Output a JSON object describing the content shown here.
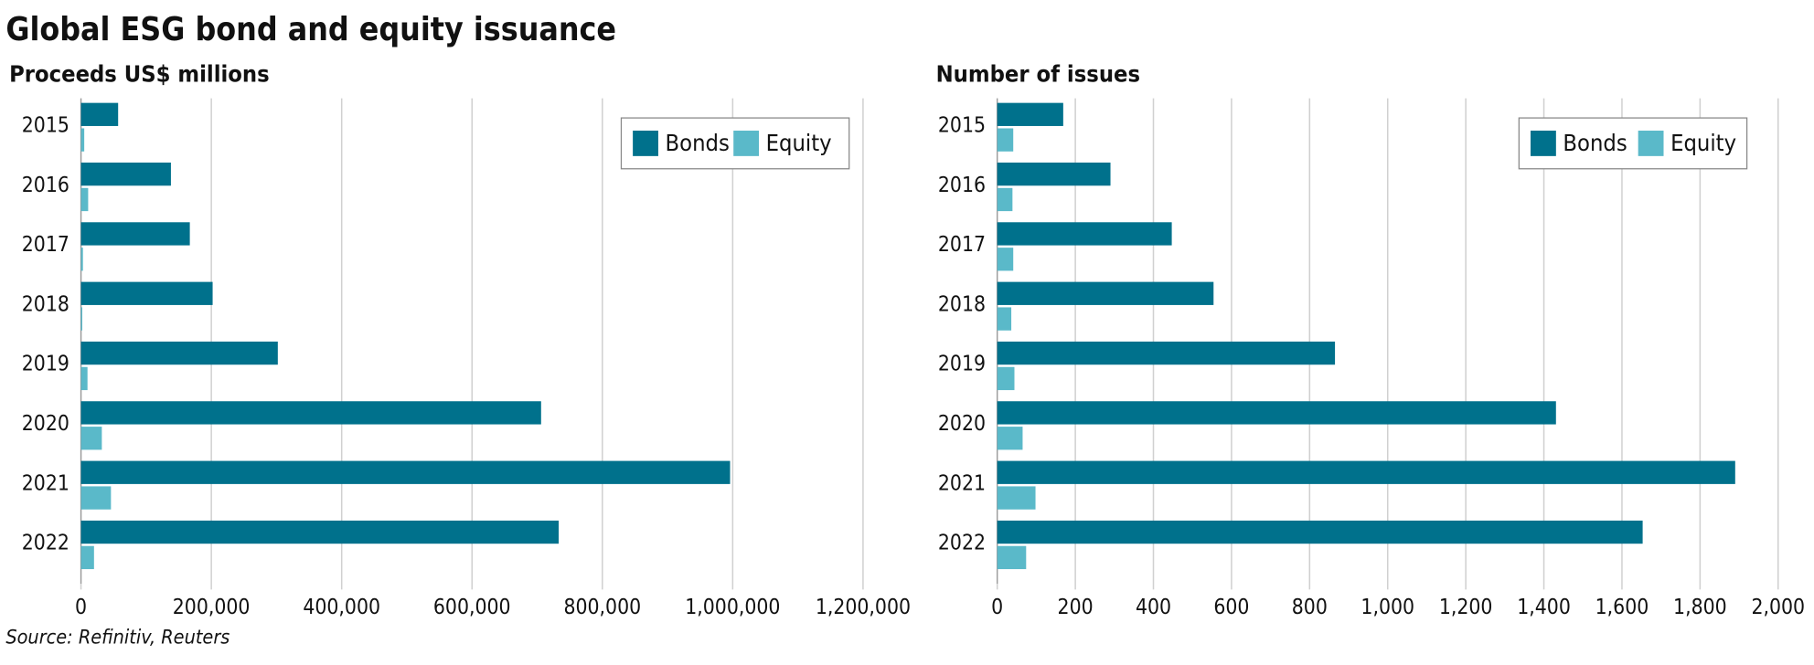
{
  "title": "Global ESG bond and equity issuance",
  "source": "Source: Refinitiv, Reuters",
  "chart_data": [
    {
      "type": "bar",
      "orientation": "horizontal",
      "title": "Proceeds US$ millions",
      "categories": [
        "2015",
        "2016",
        "2017",
        "2018",
        "2019",
        "2020",
        "2021",
        "2022"
      ],
      "series": [
        {
          "name": "Bonds",
          "color": "#00718c",
          "values": [
            57000,
            138000,
            167000,
            202000,
            302000,
            706000,
            996000,
            733000
          ]
        },
        {
          "name": "Equity",
          "color": "#5ab9c9",
          "values": [
            5000,
            11000,
            3000,
            2000,
            10000,
            32000,
            46000,
            20000
          ]
        }
      ],
      "xlim": [
        0,
        1200000
      ],
      "xticks": [
        0,
        {
          "value": 200000,
          "label": "200,000"
        },
        {
          "value": 400000,
          "label": "400,000"
        },
        {
          "value": 600000,
          "label": "600,000"
        },
        {
          "value": 800000,
          "label": "800,000"
        },
        {
          "value": 1000000,
          "label": "1,000,000"
        },
        {
          "value": 1200000,
          "label": "1,200,000"
        }
      ],
      "grid": true,
      "legend": "top-right"
    },
    {
      "type": "bar",
      "orientation": "horizontal",
      "title": "Number of issues",
      "categories": [
        "2015",
        "2016",
        "2017",
        "2018",
        "2019",
        "2020",
        "2021",
        "2022"
      ],
      "series": [
        {
          "name": "Bonds",
          "color": "#00718c",
          "values": [
            169,
            290,
            447,
            554,
            865,
            1431,
            1890,
            1653
          ]
        },
        {
          "name": "Equity",
          "color": "#5ab9c9",
          "values": [
            41,
            39,
            41,
            36,
            44,
            65,
            98,
            74
          ]
        }
      ],
      "xlim": [
        0,
        2000
      ],
      "xticks": [
        0,
        200,
        400,
        600,
        800,
        {
          "value": 1000,
          "label": "1,000"
        },
        {
          "value": 1200,
          "label": "1,200"
        },
        {
          "value": 1400,
          "label": "1,400"
        },
        {
          "value": 1600,
          "label": "1,600"
        },
        {
          "value": 1800,
          "label": "1,800"
        },
        {
          "value": 2000,
          "label": "2,000"
        }
      ],
      "grid": true,
      "legend": "top-right"
    }
  ]
}
